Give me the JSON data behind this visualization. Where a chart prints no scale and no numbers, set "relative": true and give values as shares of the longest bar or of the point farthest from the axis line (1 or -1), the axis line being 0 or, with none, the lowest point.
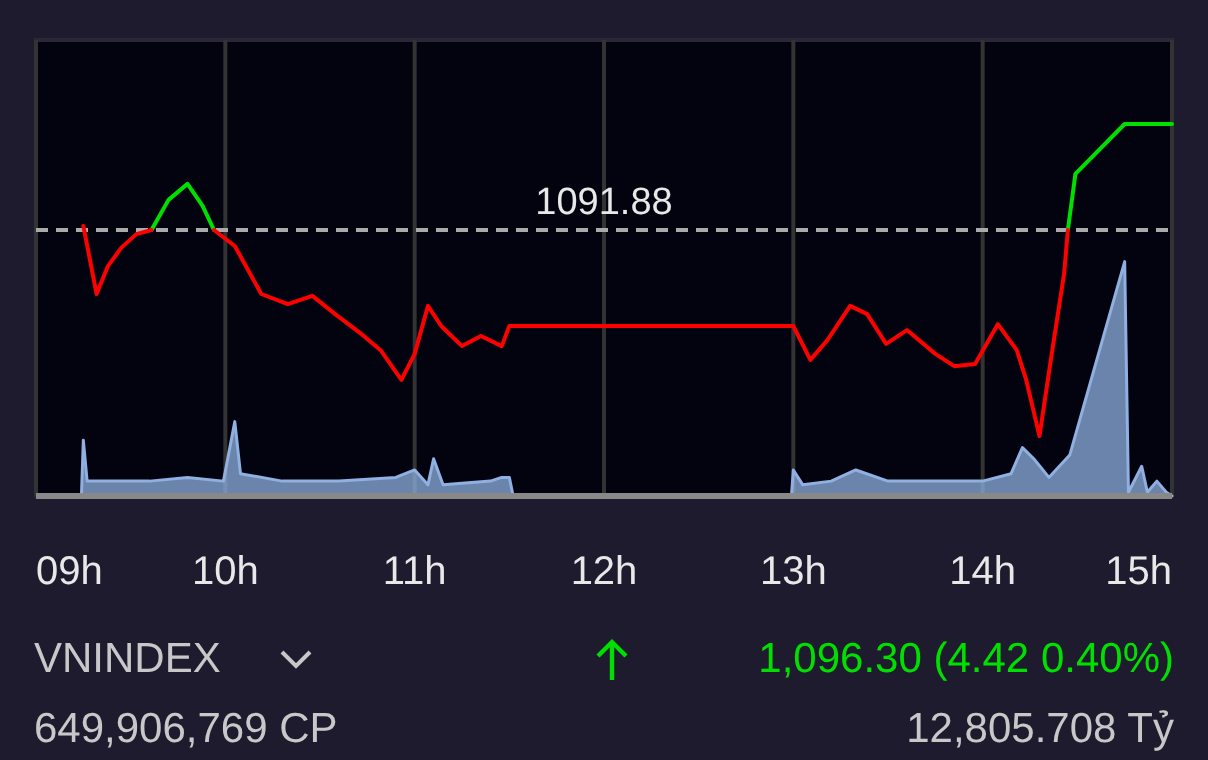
{
  "chart_data": {
    "type": "line",
    "relative": true,
    "x": [
      9.25,
      9.32,
      9.38,
      9.45,
      9.53,
      9.61,
      9.7,
      9.8,
      9.88,
      9.94,
      10.05,
      10.19,
      10.33,
      10.46,
      10.58,
      10.72,
      10.82,
      10.93,
      11.0,
      11.07,
      11.14,
      11.25,
      11.35,
      11.46,
      11.5,
      13.0,
      13.09,
      13.18,
      13.3,
      13.39,
      13.49,
      13.6,
      13.75,
      13.85,
      13.96,
      14.08,
      14.18,
      14.23,
      14.3,
      14.36,
      14.43,
      14.45,
      14.49,
      14.75,
      15.0
    ],
    "series": [
      {
        "color": "#00e000",
        "values": [
          null,
          null,
          null,
          null,
          null,
          0.715,
          0.796,
          0.839,
          0.78,
          0.715,
          null,
          null,
          null,
          null,
          null,
          null,
          null,
          null,
          null,
          null,
          null,
          null,
          null,
          null,
          null,
          null,
          null,
          null,
          null,
          null,
          null,
          null,
          null,
          null,
          null,
          null,
          null,
          null,
          null,
          null,
          null,
          0.715,
          0.866,
          1,
          1
        ]
      },
      {
        "color": "#ff0000",
        "values": [
          0.726,
          0.543,
          0.618,
          0.667,
          0.704,
          0.715,
          null,
          null,
          null,
          0.715,
          0.672,
          0.543,
          0.516,
          0.538,
          0.489,
          0.435,
          0.392,
          0.312,
          0.382,
          0.511,
          0.457,
          0.403,
          0.43,
          0.403,
          0.457,
          0.457,
          0.366,
          0.419,
          0.511,
          0.489,
          0.409,
          0.446,
          0.382,
          0.349,
          0.355,
          0.462,
          0.392,
          0.312,
          0.161,
          0.366,
          0.597,
          0.715,
          null,
          null,
          null
        ]
      },
      {
        "type": "area",
        "color": "#8fb0e0",
        "x": [
          9.24,
          9.25,
          9.27,
          9.4,
          9.6,
          9.8,
          9.99,
          10.05,
          10.08,
          10.3,
          10.6,
          10.9,
          11.0,
          11.07,
          11.1,
          11.15,
          11.4,
          11.46,
          11.5,
          11.52,
          12.99,
          13.0,
          13.05,
          13.2,
          13.33,
          13.5,
          13.8,
          14.0,
          14.15,
          14.21,
          14.27,
          14.35,
          14.46,
          14.75,
          14.77,
          14.84,
          14.87,
          14.92,
          14.97,
          15.0
        ],
        "values": [
          0,
          0.15,
          0.04,
          0.04,
          0.04,
          0.05,
          0.04,
          0.2,
          0.06,
          0.04,
          0.04,
          0.05,
          0.07,
          0.03,
          0.1,
          0.03,
          0.04,
          0.05,
          0.05,
          0,
          0,
          0.07,
          0.03,
          0.04,
          0.07,
          0.04,
          0.04,
          0.04,
          0.06,
          0.13,
          0.1,
          0.05,
          0.11,
          0.63,
          0.01,
          0.08,
          0.01,
          0.04,
          0.01,
          0
        ]
      }
    ],
    "xlim": [
      9,
      15
    ],
    "xticks": [
      {
        "value": 9,
        "label": "09h"
      },
      {
        "value": 10,
        "label": "10h"
      },
      {
        "value": 11,
        "label": "11h"
      },
      {
        "value": 12,
        "label": "12h"
      },
      {
        "value": 13,
        "label": "13h"
      },
      {
        "value": 14,
        "label": "14h"
      },
      {
        "value": 15,
        "label": "15h"
      }
    ],
    "tick_labels": "x",
    "grid": "x",
    "ref_lines": [
      {
        "axis": "y",
        "value": 0.715,
        "color": "#aaaaaa",
        "line_style": "dashed"
      }
    ],
    "annotations": [
      "1091.88",
      "VNINDEX",
      "1,096.30 (4.42 0.40%)",
      "649,906,769 CP",
      "12,805.708 Tỷ"
    ]
  }
}
